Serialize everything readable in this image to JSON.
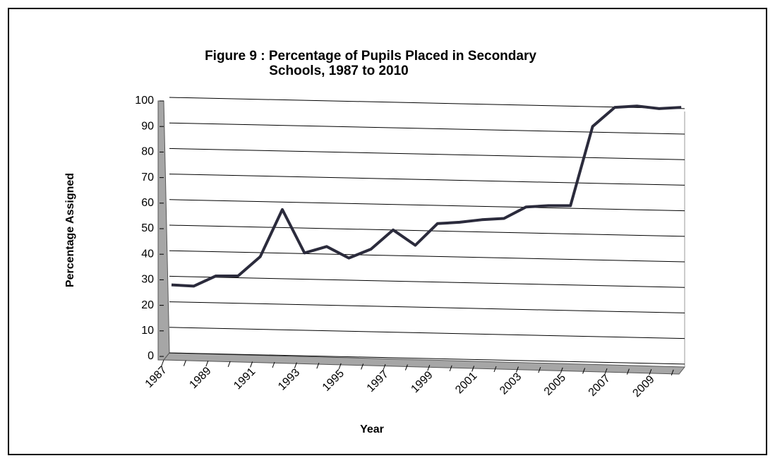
{
  "chart_data": {
    "type": "line",
    "title": [
      "Figure 9 : Percentage of Pupils Placed in Secondary",
      "Schools, 1987 to 2010"
    ],
    "x_label": "Year",
    "y_label": "Percentage Assigned",
    "categories": [
      "1987",
      null,
      "1989",
      null,
      "1991",
      null,
      "1993",
      null,
      "1995",
      null,
      "1997",
      null,
      "1999",
      null,
      "2001",
      null,
      "2003",
      null,
      "2005",
      null,
      "2007",
      null,
      "2009",
      null
    ],
    "series": [
      {
        "name": "Percentage Assigned",
        "color": "#2b2b3c",
        "values": [
          28,
          27.5,
          31.5,
          31.5,
          39,
          57.5,
          40.5,
          43,
          38.5,
          42,
          49.5,
          43.5,
          52,
          52.5,
          53.5,
          54,
          58.5,
          59,
          59,
          90,
          97.5,
          98,
          97,
          97.5
        ]
      }
    ],
    "ylim": [
      0,
      100
    ],
    "yticks": [
      0,
      10,
      20,
      30,
      40,
      50,
      60,
      70,
      80,
      90,
      100
    ],
    "grid": true
  }
}
